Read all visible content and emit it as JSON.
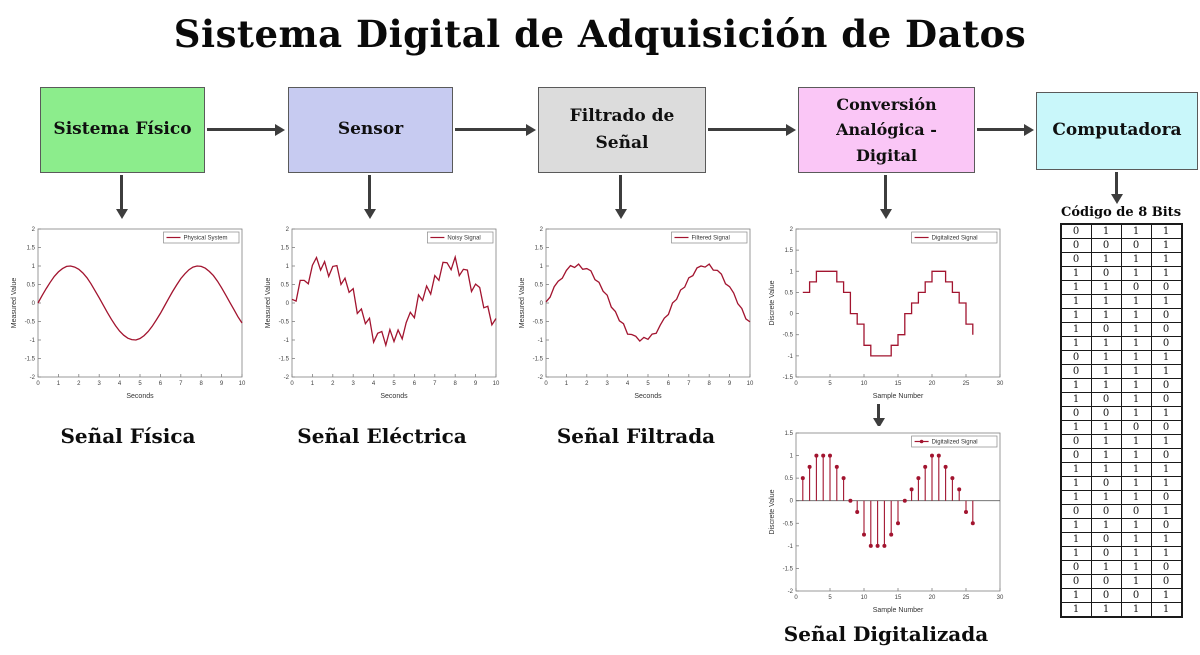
{
  "title": "Sistema Digital de Adquisición de Datos",
  "colors": {
    "line": "#a2142f",
    "arrow": "#3d3d3d",
    "axis": "#808080"
  },
  "flow": {
    "boxes": [
      {
        "label": "Sistema Físico",
        "color": "#8ced8c"
      },
      {
        "label": "Sensor",
        "color": "#c7cbf1"
      },
      {
        "label": "Filtrado de Señal",
        "color": "#dcdcdc"
      },
      {
        "label": "Conversión Analógica - Digital",
        "color": "#fac6f6"
      },
      {
        "label": "Computadora",
        "color": "#c9f7fa"
      }
    ]
  },
  "captions": {
    "fisica": "Señal Física",
    "electrica": "Señal Eléctrica",
    "filtrada": "Señal Filtrada",
    "digitalizada": "Señal Digitalizada"
  },
  "binary_table": {
    "title": "Código de 8 Bits",
    "rows": [
      [
        0,
        1,
        1,
        1
      ],
      [
        0,
        0,
        0,
        1
      ],
      [
        0,
        1,
        1,
        1
      ],
      [
        1,
        0,
        1,
        1
      ],
      [
        1,
        1,
        0,
        0
      ],
      [
        1,
        1,
        1,
        1
      ],
      [
        1,
        1,
        1,
        0
      ],
      [
        1,
        0,
        1,
        0
      ],
      [
        1,
        1,
        1,
        0
      ],
      [
        0,
        1,
        1,
        1
      ],
      [
        0,
        1,
        1,
        1
      ],
      [
        1,
        1,
        1,
        0
      ],
      [
        1,
        0,
        1,
        0
      ],
      [
        0,
        0,
        1,
        1
      ],
      [
        1,
        1,
        0,
        0
      ],
      [
        0,
        1,
        1,
        1
      ],
      [
        0,
        1,
        1,
        0
      ],
      [
        1,
        1,
        1,
        1
      ],
      [
        1,
        0,
        1,
        1
      ],
      [
        1,
        1,
        1,
        0
      ],
      [
        0,
        0,
        0,
        1
      ],
      [
        1,
        1,
        1,
        0
      ],
      [
        1,
        0,
        1,
        1
      ],
      [
        1,
        0,
        1,
        1
      ],
      [
        0,
        1,
        1,
        0
      ],
      [
        0,
        0,
        1,
        0
      ],
      [
        1,
        0,
        0,
        1
      ],
      [
        1,
        1,
        1,
        1
      ]
    ]
  },
  "chart_data": [
    {
      "name": "physical-system",
      "type": "line",
      "legend": "Physical System",
      "xlabel": "Seconds",
      "ylabel": "Measured Value",
      "xlim": [
        0,
        10
      ],
      "ylim": [
        -2,
        2
      ],
      "xticks": [
        0,
        1,
        2,
        3,
        4,
        5,
        6,
        7,
        8,
        9,
        10
      ],
      "yticks": [
        -2,
        -1.5,
        -1,
        -0.5,
        0,
        0.5,
        1,
        1.5,
        2
      ],
      "x": [
        0,
        0.2,
        0.4,
        0.6,
        0.8,
        1,
        1.2,
        1.4,
        1.6,
        1.8,
        2,
        2.2,
        2.4,
        2.6,
        2.8,
        3,
        3.2,
        3.4,
        3.6,
        3.8,
        4,
        4.2,
        4.4,
        4.6,
        4.8,
        5,
        5.2,
        5.4,
        5.6,
        5.8,
        6,
        6.2,
        6.4,
        6.6,
        6.8,
        7,
        7.2,
        7.4,
        7.6,
        7.8,
        8,
        8.2,
        8.4,
        8.6,
        8.8,
        9,
        9.2,
        9.4,
        9.6,
        9.8,
        10
      ],
      "y": [
        0,
        0.2,
        0.39,
        0.56,
        0.72,
        0.84,
        0.93,
        0.99,
        1,
        0.97,
        0.91,
        0.81,
        0.68,
        0.52,
        0.33,
        0.14,
        -0.06,
        -0.26,
        -0.44,
        -0.61,
        -0.76,
        -0.87,
        -0.95,
        -0.99,
        -1,
        -0.96,
        -0.88,
        -0.77,
        -0.63,
        -0.46,
        -0.28,
        -0.08,
        0.12,
        0.31,
        0.49,
        0.66,
        0.79,
        0.9,
        0.97,
        1,
        0.99,
        0.94,
        0.85,
        0.74,
        0.59,
        0.41,
        0.22,
        0.02,
        -0.17,
        -0.37,
        -0.54
      ]
    },
    {
      "name": "noisy-signal",
      "type": "line",
      "legend": "Noisy Signal",
      "xlabel": "Seconds",
      "ylabel": "Measured Value",
      "xlim": [
        0,
        10
      ],
      "ylim": [
        -2,
        2
      ],
      "xticks": [
        0,
        1,
        2,
        3,
        4,
        5,
        6,
        7,
        8,
        9,
        10
      ],
      "yticks": [
        -2,
        -1.5,
        -1,
        -0.5,
        0,
        0.5,
        1,
        1.5,
        2
      ],
      "x": [
        0,
        0.2,
        0.4,
        0.6,
        0.8,
        1,
        1.2,
        1.4,
        1.6,
        1.8,
        2,
        2.2,
        2.4,
        2.6,
        2.8,
        3,
        3.2,
        3.4,
        3.6,
        3.8,
        4,
        4.2,
        4.4,
        4.6,
        4.8,
        5,
        5.2,
        5.4,
        5.6,
        5.8,
        6,
        6.2,
        6.4,
        6.6,
        6.8,
        7,
        7.2,
        7.4,
        7.6,
        7.8,
        8,
        8.2,
        8.4,
        8.6,
        8.8,
        9,
        9.2,
        9.4,
        9.6,
        9.8,
        10
      ],
      "y": [
        0.1,
        0.05,
        0.61,
        0.61,
        0.52,
        1.02,
        1.23,
        0.89,
        1.12,
        0.72,
        0.99,
        1.01,
        0.5,
        0.67,
        0.29,
        0.39,
        -0.28,
        -0.16,
        -0.56,
        -0.41,
        -1.06,
        -0.82,
        -0.77,
        -1.14,
        -0.72,
        -1.04,
        -0.73,
        -0.97,
        -0.53,
        -0.25,
        -0.4,
        0.22,
        0.07,
        0.46,
        0.24,
        0.74,
        0.61,
        1.1,
        1.09,
        0.9,
        1.24,
        0.74,
        0.91,
        0.89,
        0.31,
        0.51,
        0.42,
        -0.13,
        -0.09,
        -0.59,
        -0.42
      ]
    },
    {
      "name": "filtered-signal",
      "type": "line",
      "legend": "Filtered Signal",
      "xlabel": "Seconds",
      "ylabel": "Measured Value",
      "xlim": [
        0,
        10
      ],
      "ylim": [
        -2,
        2
      ],
      "xticks": [
        0,
        1,
        2,
        3,
        4,
        5,
        6,
        7,
        8,
        9,
        10
      ],
      "yticks": [
        -2,
        -1.5,
        -1,
        -0.5,
        0,
        0.5,
        1,
        1.5,
        2
      ],
      "x": [
        0,
        0.2,
        0.4,
        0.6,
        0.8,
        1,
        1.2,
        1.4,
        1.6,
        1.8,
        2,
        2.2,
        2.4,
        2.6,
        2.8,
        3,
        3.2,
        3.4,
        3.6,
        3.8,
        4,
        4.2,
        4.4,
        4.6,
        4.8,
        5,
        5.2,
        5.4,
        5.6,
        5.8,
        6,
        6.2,
        6.4,
        6.6,
        6.8,
        7,
        7.2,
        7.4,
        7.6,
        7.8,
        8,
        8.2,
        8.4,
        8.6,
        8.8,
        9,
        9.2,
        9.4,
        9.6,
        9.8,
        10
      ],
      "y": [
        0.03,
        0.16,
        0.44,
        0.59,
        0.67,
        0.88,
        1.01,
        0.96,
        1.05,
        0.91,
        0.93,
        0.87,
        0.63,
        0.56,
        0.32,
        0.21,
        -0.11,
        -0.23,
        -0.48,
        -0.56,
        -0.84,
        -0.85,
        -0.9,
        -1.03,
        -0.93,
        -0.98,
        -0.84,
        -0.82,
        -0.6,
        -0.41,
        -0.31,
        0,
        0.1,
        0.35,
        0.43,
        0.68,
        0.74,
        0.95,
        1,
        0.97,
        1.05,
        0.89,
        0.88,
        0.78,
        0.52,
        0.44,
        0.27,
        -0.02,
        -0.15,
        -0.43,
        -0.51
      ]
    },
    {
      "name": "digitalized-stairs",
      "type": "stairs",
      "legend": "Digitalized Signal",
      "xlabel": "Sample Number",
      "ylabel": "Discrete Value",
      "xlim": [
        0,
        30
      ],
      "ylim": [
        -1.5,
        2
      ],
      "xticks": [
        0,
        5,
        10,
        15,
        20,
        25,
        30
      ],
      "yticks": [
        -1.5,
        -1,
        -0.5,
        0,
        0.5,
        1,
        1.5,
        2
      ],
      "x": [
        1,
        2,
        3,
        4,
        5,
        6,
        7,
        8,
        9,
        10,
        11,
        12,
        13,
        14,
        15,
        16,
        17,
        18,
        19,
        20,
        21,
        22,
        23,
        24,
        25,
        26
      ],
      "y": [
        0.5,
        0.75,
        1,
        1,
        1,
        0.75,
        0.5,
        0,
        -0.25,
        -0.75,
        -1,
        -1,
        -1,
        -0.75,
        -0.5,
        0,
        0.25,
        0.5,
        0.75,
        1,
        1,
        0.75,
        0.5,
        0.25,
        -0.25,
        -0.5
      ]
    },
    {
      "name": "digitalized-stem",
      "type": "stem",
      "legend": "Digitalized Signal",
      "xlabel": "Sample Number",
      "ylabel": "Discrete Value",
      "xlim": [
        0,
        30
      ],
      "ylim": [
        -2,
        1.5
      ],
      "xticks": [
        0,
        5,
        10,
        15,
        20,
        25,
        30
      ],
      "yticks": [
        -2,
        -1.5,
        -1,
        -0.5,
        0,
        0.5,
        1,
        1.5
      ],
      "x": [
        1,
        2,
        3,
        4,
        5,
        6,
        7,
        8,
        9,
        10,
        11,
        12,
        13,
        14,
        15,
        16,
        17,
        18,
        19,
        20,
        21,
        22,
        23,
        24,
        25,
        26
      ],
      "y": [
        0.5,
        0.75,
        1,
        1,
        1,
        0.75,
        0.5,
        0,
        -0.25,
        -0.75,
        -1,
        -1,
        -1,
        -0.75,
        -0.5,
        0,
        0.25,
        0.5,
        0.75,
        1,
        1,
        0.75,
        0.5,
        0.25,
        -0.25,
        -0.5
      ]
    }
  ]
}
